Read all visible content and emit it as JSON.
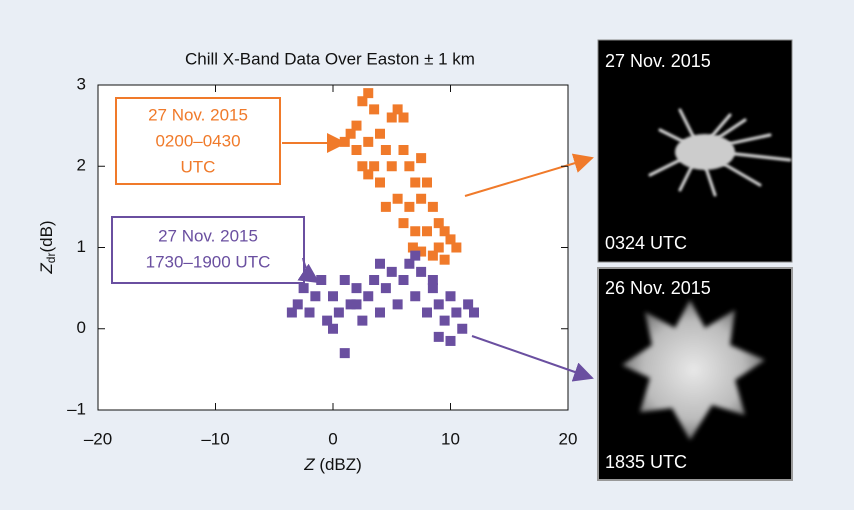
{
  "chart_data": {
    "type": "scatter",
    "title": "Chill X-Band Data Over Easton ± 1 km",
    "x_label": {
      "symbol": "Z",
      "unit": "(dBZ)"
    },
    "y_label": {
      "symbol": "Z",
      "subscript": "dr",
      "unit": "(dB)"
    },
    "xlim": [
      -20,
      20
    ],
    "ylim": [
      -1,
      3
    ],
    "xticks": [
      {
        "value": -20,
        "label": "–20"
      },
      {
        "value": -10,
        "label": "–10"
      },
      0,
      10,
      20
    ],
    "yticks": [
      {
        "value": -1,
        "label": "–1"
      },
      0,
      1,
      2,
      3
    ],
    "series": [
      {
        "name": "27 Nov. 2015 0200–0430 UTC",
        "label_lines": [
          "27 Nov. 2015",
          "0200–0430",
          "UTC"
        ],
        "color": "#f07a2a",
        "x": [
          2.5,
          3,
          3.5,
          2,
          1.5,
          1,
          2,
          3,
          4,
          5,
          5.5,
          6,
          4.5,
          3.5,
          2.5,
          4,
          5,
          6,
          6.5,
          7,
          5.5,
          6.5,
          7.5,
          8,
          8.5,
          9,
          9.5,
          10,
          7,
          8,
          9,
          10.5,
          8.5,
          9.5,
          7.5,
          6,
          4.5,
          3,
          7.5,
          6.8
        ],
        "values": [
          2.8,
          2.9,
          2.7,
          2.5,
          2.4,
          2.3,
          2.2,
          2.3,
          2.4,
          2.6,
          2.7,
          2.6,
          2.2,
          2.0,
          2.0,
          1.8,
          2.0,
          2.2,
          2.0,
          1.8,
          1.6,
          1.5,
          1.6,
          1.8,
          1.5,
          1.3,
          1.2,
          1.1,
          1.2,
          1.2,
          1.0,
          1.0,
          0.9,
          0.85,
          0.95,
          1.3,
          1.5,
          1.9,
          2.1,
          1.0
        ]
      },
      {
        "name": "27 Nov. 2015 1730–1900 UTC",
        "label_lines": [
          "27 Nov. 2015",
          "1730–1900 UTC"
        ],
        "color": "#6a4fa0",
        "x": [
          -3,
          -2.5,
          -2,
          -1.5,
          -1,
          -0.5,
          0,
          0.5,
          1,
          1.5,
          2,
          2.5,
          3,
          3.5,
          4,
          4.5,
          5,
          5.5,
          6,
          6.5,
          7,
          7.5,
          8,
          8.5,
          9,
          9.5,
          10,
          10.5,
          11,
          11.5,
          12,
          9,
          10,
          7,
          -3.5,
          0,
          1,
          8.5,
          4,
          2
        ],
        "values": [
          0.3,
          0.5,
          0.2,
          0.4,
          0.6,
          0.1,
          0.4,
          0.2,
          0.6,
          0.3,
          0.5,
          0.1,
          0.4,
          0.6,
          0.2,
          0.5,
          0.7,
          0.3,
          0.6,
          0.8,
          0.4,
          0.7,
          0.2,
          0.5,
          0.3,
          0.1,
          0.4,
          0.2,
          0.0,
          0.3,
          0.2,
          -0.1,
          -0.15,
          0.9,
          0.2,
          0,
          -0.3,
          0.6,
          0.8,
          0.3
        ]
      }
    ]
  },
  "photos": [
    {
      "top_label": "27 Nov. 2015",
      "bottom_label": "0324 UTC"
    },
    {
      "top_label": "26 Nov. 2015",
      "bottom_label": "1835 UTC"
    }
  ]
}
